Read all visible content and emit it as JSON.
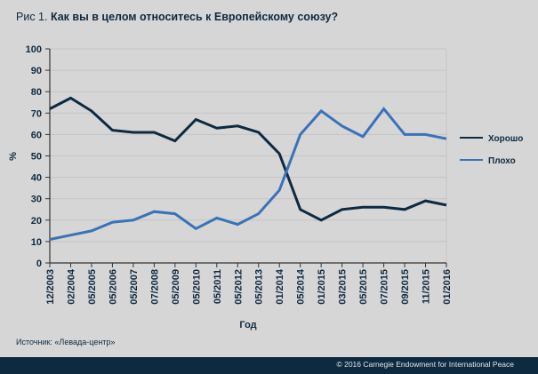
{
  "title_prefix": "Рис 1.",
  "title_question": "Как вы в целом относитесь к Европейскому союзу?",
  "source": "Источник: «Левада-центр»",
  "footer": "© 2016 Carnegie Endowment for International Peace",
  "chart_data": {
    "type": "line",
    "title": "Рис 1. Как вы в целом относитесь к Европейскому союзу?",
    "xlabel": "Год",
    "ylabel": "%",
    "ylim": [
      0,
      100
    ],
    "yticks": [
      0,
      10,
      20,
      30,
      40,
      50,
      60,
      70,
      80,
      90,
      100
    ],
    "grid": true,
    "legend_position": "right",
    "categories": [
      "12/2003",
      "02/2004",
      "05/2005",
      "05/2006",
      "05/2007",
      "07/2008",
      "05/2009",
      "05/2010",
      "05/2011",
      "05/2012",
      "05/2013",
      "01/2014",
      "05/2014",
      "01/2015",
      "03/2015",
      "05/2015",
      "07/2015",
      "09/2015",
      "11/2015",
      "01/2016"
    ],
    "series": [
      {
        "name": "Хорошо",
        "color": "#0d2a40",
        "values": [
          72,
          77,
          71,
          62,
          61,
          61,
          57,
          67,
          63,
          64,
          61,
          51,
          25,
          20,
          25,
          26,
          26,
          25,
          29,
          27
        ]
      },
      {
        "name": "Плохо",
        "color": "#3a72b8",
        "values": [
          11,
          13,
          15,
          19,
          20,
          24,
          23,
          16,
          21,
          18,
          23,
          34,
          60,
          71,
          64,
          59,
          72,
          60,
          60,
          58
        ]
      }
    ]
  }
}
